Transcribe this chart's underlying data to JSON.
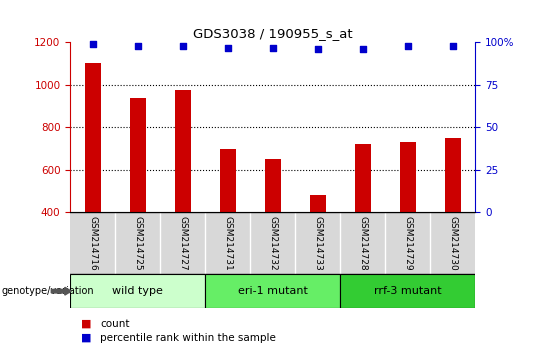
{
  "title": "GDS3038 / 190955_s_at",
  "samples": [
    "GSM214716",
    "GSM214725",
    "GSM214727",
    "GSM214731",
    "GSM214732",
    "GSM214733",
    "GSM214728",
    "GSM214729",
    "GSM214730"
  ],
  "counts": [
    1105,
    940,
    975,
    700,
    650,
    480,
    720,
    730,
    750
  ],
  "percentile_ranks": [
    99,
    98,
    98,
    97,
    97,
    96,
    96,
    98,
    98
  ],
  "groups": [
    {
      "label": "wild type",
      "indices": [
        0,
        1,
        2
      ],
      "color": "#ccffcc"
    },
    {
      "label": "eri-1 mutant",
      "indices": [
        3,
        4,
        5
      ],
      "color": "#66ee66"
    },
    {
      "label": "rrf-3 mutant",
      "indices": [
        6,
        7,
        8
      ],
      "color": "#33cc33"
    }
  ],
  "bar_color": "#cc0000",
  "dot_color": "#0000cc",
  "ylim_left": [
    400,
    1200
  ],
  "ylim_right": [
    0,
    100
  ],
  "yticks_left": [
    400,
    600,
    800,
    1000,
    1200
  ],
  "yticks_right": [
    0,
    25,
    50,
    75,
    100
  ],
  "grid_values": [
    600,
    800,
    1000
  ],
  "tick_label_color_left": "#cc0000",
  "tick_label_color_right": "#0000cc",
  "sample_bg_color": "#cccccc",
  "legend_count_color": "#cc0000",
  "legend_dot_color": "#0000cc",
  "genotype_label": "genotype/variation"
}
